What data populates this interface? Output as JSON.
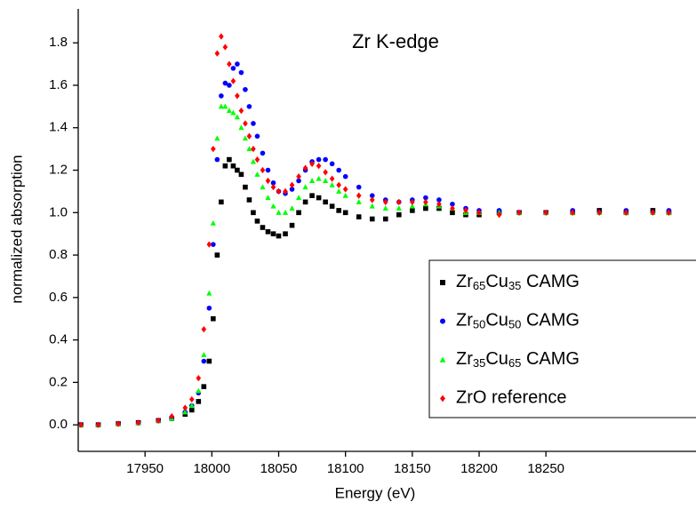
{
  "chart_data": {
    "type": "scatter",
    "annotation": "Zr K-edge",
    "x_label": "Energy (eV)",
    "y_label": "normalized absorption",
    "x": [
      17902,
      17915,
      17930,
      17945,
      17960,
      17970,
      17980,
      17985,
      17990,
      17994,
      17998,
      18001,
      18004,
      18007,
      18010,
      18013,
      18016,
      18019,
      18022,
      18025,
      18028,
      18031,
      18034,
      18038,
      18042,
      18046,
      18050,
      18055,
      18060,
      18065,
      18070,
      18075,
      18080,
      18085,
      18090,
      18095,
      18100,
      18110,
      18120,
      18130,
      18140,
      18150,
      18160,
      18170,
      18180,
      18190,
      18200,
      18215,
      18230,
      18250,
      18270,
      18290,
      18310,
      18330,
      18342
    ],
    "series": [
      {
        "name": "Zr65Cu35 CAMG",
        "color": "#000000",
        "marker": "square",
        "values": [
          0,
          0,
          0.005,
          0.01,
          0.02,
          0.03,
          0.05,
          0.07,
          0.11,
          0.18,
          0.3,
          0.5,
          0.8,
          1.05,
          1.22,
          1.25,
          1.22,
          1.2,
          1.18,
          1.12,
          1.06,
          1.0,
          0.96,
          0.93,
          0.91,
          0.9,
          0.89,
          0.9,
          0.94,
          1.0,
          1.05,
          1.08,
          1.07,
          1.05,
          1.03,
          1.01,
          1.0,
          0.98,
          0.97,
          0.97,
          0.99,
          1.01,
          1.02,
          1.02,
          1.0,
          0.99,
          0.99,
          1.0,
          1.0,
          1.0,
          1.0,
          1.01,
          1.0,
          1.01,
          1.0
        ]
      },
      {
        "name": "Zr50Cu50 CAMG",
        "color": "#0000ff",
        "marker": "circle",
        "values": [
          0,
          0,
          0.005,
          0.01,
          0.02,
          0.03,
          0.06,
          0.09,
          0.15,
          0.3,
          0.55,
          0.85,
          1.25,
          1.55,
          1.61,
          1.6,
          1.68,
          1.7,
          1.66,
          1.58,
          1.5,
          1.42,
          1.36,
          1.28,
          1.2,
          1.14,
          1.1,
          1.09,
          1.11,
          1.15,
          1.2,
          1.24,
          1.25,
          1.25,
          1.23,
          1.2,
          1.17,
          1.12,
          1.08,
          1.06,
          1.05,
          1.06,
          1.07,
          1.06,
          1.04,
          1.02,
          1.01,
          1.01,
          1.0,
          1.0,
          1.01,
          1.0,
          1.01,
          1.0,
          1.01
        ]
      },
      {
        "name": "Zr35Cu65 CAMG",
        "color": "#00ff00",
        "marker": "triangle",
        "values": [
          0,
          0,
          0.005,
          0.01,
          0.02,
          0.03,
          0.06,
          0.09,
          0.16,
          0.33,
          0.62,
          0.95,
          1.35,
          1.5,
          1.5,
          1.48,
          1.47,
          1.45,
          1.4,
          1.35,
          1.3,
          1.24,
          1.18,
          1.12,
          1.07,
          1.03,
          1.0,
          1.0,
          1.02,
          1.07,
          1.12,
          1.15,
          1.16,
          1.15,
          1.13,
          1.1,
          1.08,
          1.05,
          1.03,
          1.02,
          1.02,
          1.03,
          1.04,
          1.03,
          1.02,
          1.0,
          1.0,
          1.0,
          1.0,
          1.0,
          1.0,
          1.0,
          1.0,
          1.0,
          1.0
        ]
      },
      {
        "name": "ZrO reference",
        "color": "#ff0000",
        "marker": "diamond",
        "values": [
          0,
          0,
          0.005,
          0.01,
          0.02,
          0.04,
          0.08,
          0.12,
          0.22,
          0.45,
          0.85,
          1.3,
          1.75,
          1.83,
          1.78,
          1.7,
          1.62,
          1.55,
          1.48,
          1.42,
          1.36,
          1.3,
          1.25,
          1.2,
          1.15,
          1.12,
          1.1,
          1.1,
          1.13,
          1.17,
          1.21,
          1.23,
          1.22,
          1.19,
          1.16,
          1.13,
          1.11,
          1.08,
          1.06,
          1.05,
          1.05,
          1.05,
          1.05,
          1.04,
          1.02,
          1.01,
          1.0,
          0.99,
          1.0,
          1.0,
          1.0,
          1.0,
          1.0,
          1.0,
          1.0
        ]
      }
    ],
    "xlim": [
      17900,
      18345
    ],
    "ylim": [
      -0.125,
      1.96
    ],
    "xticks": [
      17950,
      18000,
      18050,
      18100,
      18150,
      18200,
      18250
    ],
    "yticks": [
      {
        "value": 0,
        "label": "0.0"
      },
      0.2,
      0.4,
      0.6,
      0.8,
      {
        "value": 1,
        "label": "1.0"
      },
      1.2,
      1.4,
      1.6,
      1.8
    ],
    "legend": "lower right"
  }
}
